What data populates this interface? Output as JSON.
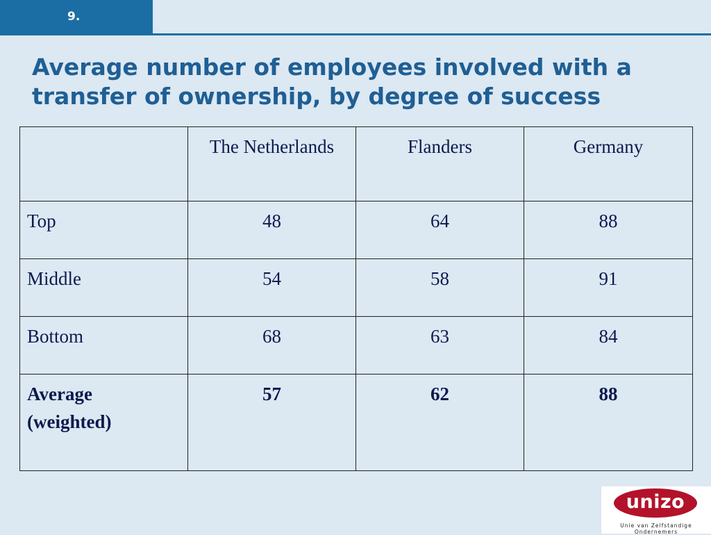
{
  "slide": {
    "number": "9.",
    "title": "Average number of employees involved with a transfer of ownership, by degree of success"
  },
  "table": {
    "columns": [
      "",
      "The Netherlands",
      "Flanders",
      "Germany"
    ],
    "rows": [
      {
        "label": "Top",
        "values": [
          "48",
          "64",
          "88"
        ]
      },
      {
        "label": "Middle",
        "values": [
          "54",
          "58",
          "91"
        ]
      },
      {
        "label": "Bottom",
        "values": [
          "68",
          "63",
          "84"
        ]
      },
      {
        "label": "Average (weighted)",
        "values": [
          "57",
          "62",
          "88"
        ]
      }
    ]
  },
  "logo": {
    "name": "unizo",
    "tagline": "Unie van Zelfstandige Ondernemers"
  },
  "colors": {
    "background": "#dce8f2",
    "accent": "#1a6ea3",
    "title": "#1f5f94",
    "logo_red": "#b3122a"
  }
}
